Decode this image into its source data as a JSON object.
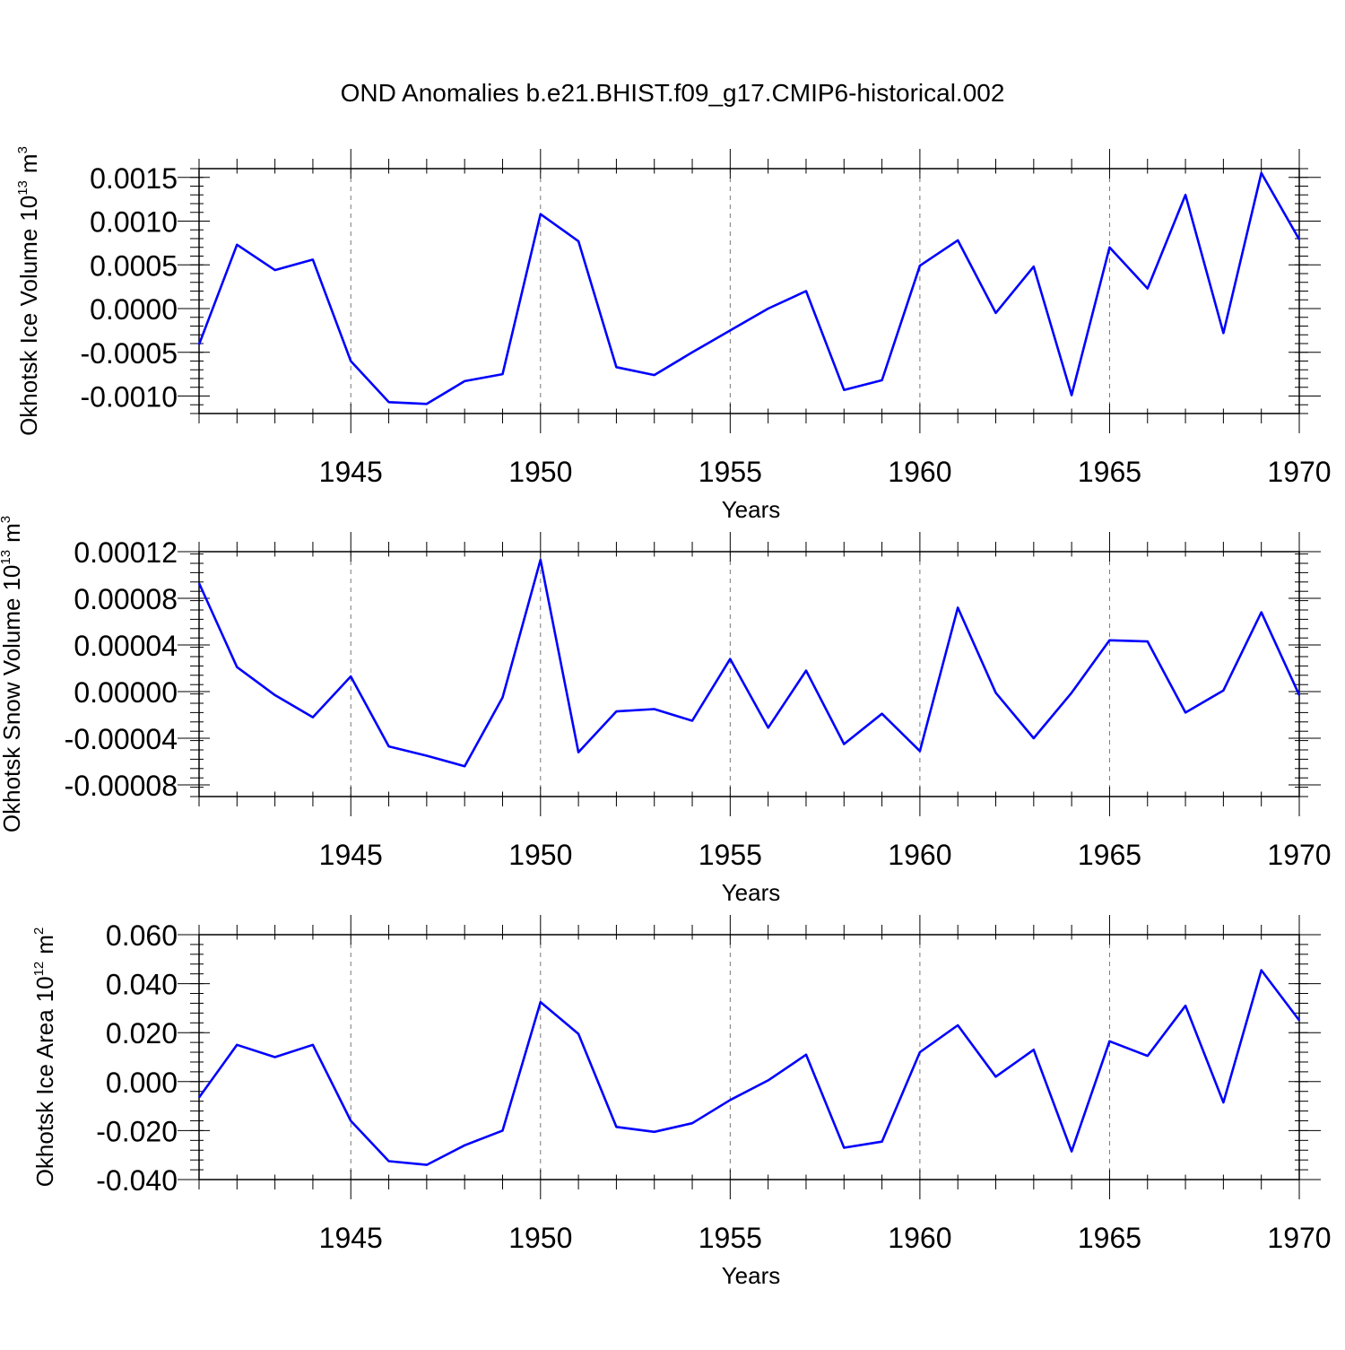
{
  "title": "OND Anomalies b.e21.BHIST.f09_g17.CMIP6-historical.002",
  "line_color": "#0000ff",
  "chart_data": [
    {
      "type": "line",
      "ylabel": "Okhotsk Ice Volume",
      "yunit_base": "10",
      "yunit_exp": "13",
      "yunit_tail": "m",
      "yunit_tail_exp": "3",
      "xlabel": "Years",
      "xlim": [
        1941,
        1970
      ],
      "ylim": [
        -0.0012,
        0.0016
      ],
      "xticks": [
        1945,
        1950,
        1955,
        1960,
        1965,
        1970
      ],
      "xtick_labels": [
        "1945",
        "1950",
        "1955",
        "1960",
        "1965",
        "1970"
      ],
      "yticks": [
        0.0015,
        0.001,
        0.0005,
        0.0,
        -0.0005,
        -0.001
      ],
      "ytick_labels": [
        "0.0015",
        "0.0010",
        "0.0005",
        "0.0000",
        "-0.0005",
        "-0.0010"
      ],
      "x": [
        1941,
        1942,
        1943,
        1944,
        1945,
        1946,
        1947,
        1948,
        1949,
        1950,
        1951,
        1952,
        1953,
        1954,
        1955,
        1956,
        1957,
        1958,
        1959,
        1960,
        1961,
        1962,
        1963,
        1964,
        1965,
        1966,
        1967,
        1968,
        1969,
        1970
      ],
      "values": [
        -0.00041,
        0.00073,
        0.00044,
        0.00056,
        -0.0006,
        -0.00107,
        -0.00109,
        -0.00083,
        -0.00075,
        0.00108,
        0.00077,
        -0.00067,
        -0.00076,
        -0.0005,
        -0.00025,
        0.0,
        0.0002,
        -0.00093,
        -0.00082,
        0.00049,
        0.00078,
        -5e-05,
        0.00048,
        -0.00099,
        0.0007,
        0.00023,
        0.0013,
        -0.00028,
        0.00155,
        0.00079
      ]
    },
    {
      "type": "line",
      "ylabel": "Okhotsk Snow Volume",
      "yunit_base": "10",
      "yunit_exp": "13",
      "yunit_tail": "m",
      "yunit_tail_exp": "3",
      "xlabel": "Years",
      "xlim": [
        1941,
        1970
      ],
      "ylim": [
        -9e-05,
        0.00012
      ],
      "xticks": [
        1945,
        1950,
        1955,
        1960,
        1965,
        1970
      ],
      "xtick_labels": [
        "1945",
        "1950",
        "1955",
        "1960",
        "1965",
        "1970"
      ],
      "yticks": [
        0.00012,
        8e-05,
        4e-05,
        0.0,
        -4e-05,
        -8e-05
      ],
      "ytick_labels": [
        "0.00012",
        "0.00008",
        "0.00004",
        "0.00000",
        "-0.00004",
        "-0.00008"
      ],
      "x": [
        1941,
        1942,
        1943,
        1944,
        1945,
        1946,
        1947,
        1948,
        1949,
        1950,
        1951,
        1952,
        1953,
        1954,
        1955,
        1956,
        1957,
        1958,
        1959,
        1960,
        1961,
        1962,
        1963,
        1964,
        1965,
        1966,
        1967,
        1968,
        1969,
        1970
      ],
      "values": [
        9.3e-05,
        2.1e-05,
        -3e-06,
        -2.2e-05,
        1.3e-05,
        -4.7e-05,
        -5.5e-05,
        -6.4e-05,
        -5e-06,
        0.000113,
        -5.2e-05,
        -1.7e-05,
        -1.5e-05,
        -2.5e-05,
        2.8e-05,
        -3.1e-05,
        1.8e-05,
        -4.5e-05,
        -1.9e-05,
        -5.1e-05,
        7.2e-05,
        -1e-06,
        -4e-05,
        -1e-06,
        4.4e-05,
        4.3e-05,
        -1.8e-05,
        1e-06,
        6.8e-05,
        -3e-06
      ]
    },
    {
      "type": "line",
      "ylabel": "Okhotsk Ice Area",
      "yunit_base": "10",
      "yunit_exp": "12",
      "yunit_tail": "m",
      "yunit_tail_exp": "2",
      "xlabel": "Years",
      "xlim": [
        1941,
        1970
      ],
      "ylim": [
        -0.04,
        0.06
      ],
      "xticks": [
        1945,
        1950,
        1955,
        1960,
        1965,
        1970
      ],
      "xtick_labels": [
        "1945",
        "1950",
        "1955",
        "1960",
        "1965",
        "1970"
      ],
      "yticks": [
        0.06,
        0.04,
        0.02,
        0.0,
        -0.02,
        -0.04
      ],
      "ytick_labels": [
        "0.060",
        "0.040",
        "0.020",
        "0.000",
        "-0.020",
        "-0.040"
      ],
      "x": [
        1941,
        1942,
        1943,
        1944,
        1945,
        1946,
        1947,
        1948,
        1949,
        1950,
        1951,
        1952,
        1953,
        1954,
        1955,
        1956,
        1957,
        1958,
        1959,
        1960,
        1961,
        1962,
        1963,
        1964,
        1965,
        1966,
        1967,
        1968,
        1969,
        1970
      ],
      "values": [
        -0.0065,
        0.015,
        0.01,
        0.015,
        -0.016,
        -0.0325,
        -0.034,
        -0.026,
        -0.02,
        0.0325,
        0.0195,
        -0.0185,
        -0.0205,
        -0.017,
        -0.0075,
        0.0005,
        0.011,
        -0.027,
        -0.0245,
        0.012,
        0.023,
        0.002,
        0.013,
        -0.0285,
        0.0165,
        0.0105,
        0.031,
        -0.0085,
        0.0455,
        0.025
      ]
    }
  ]
}
